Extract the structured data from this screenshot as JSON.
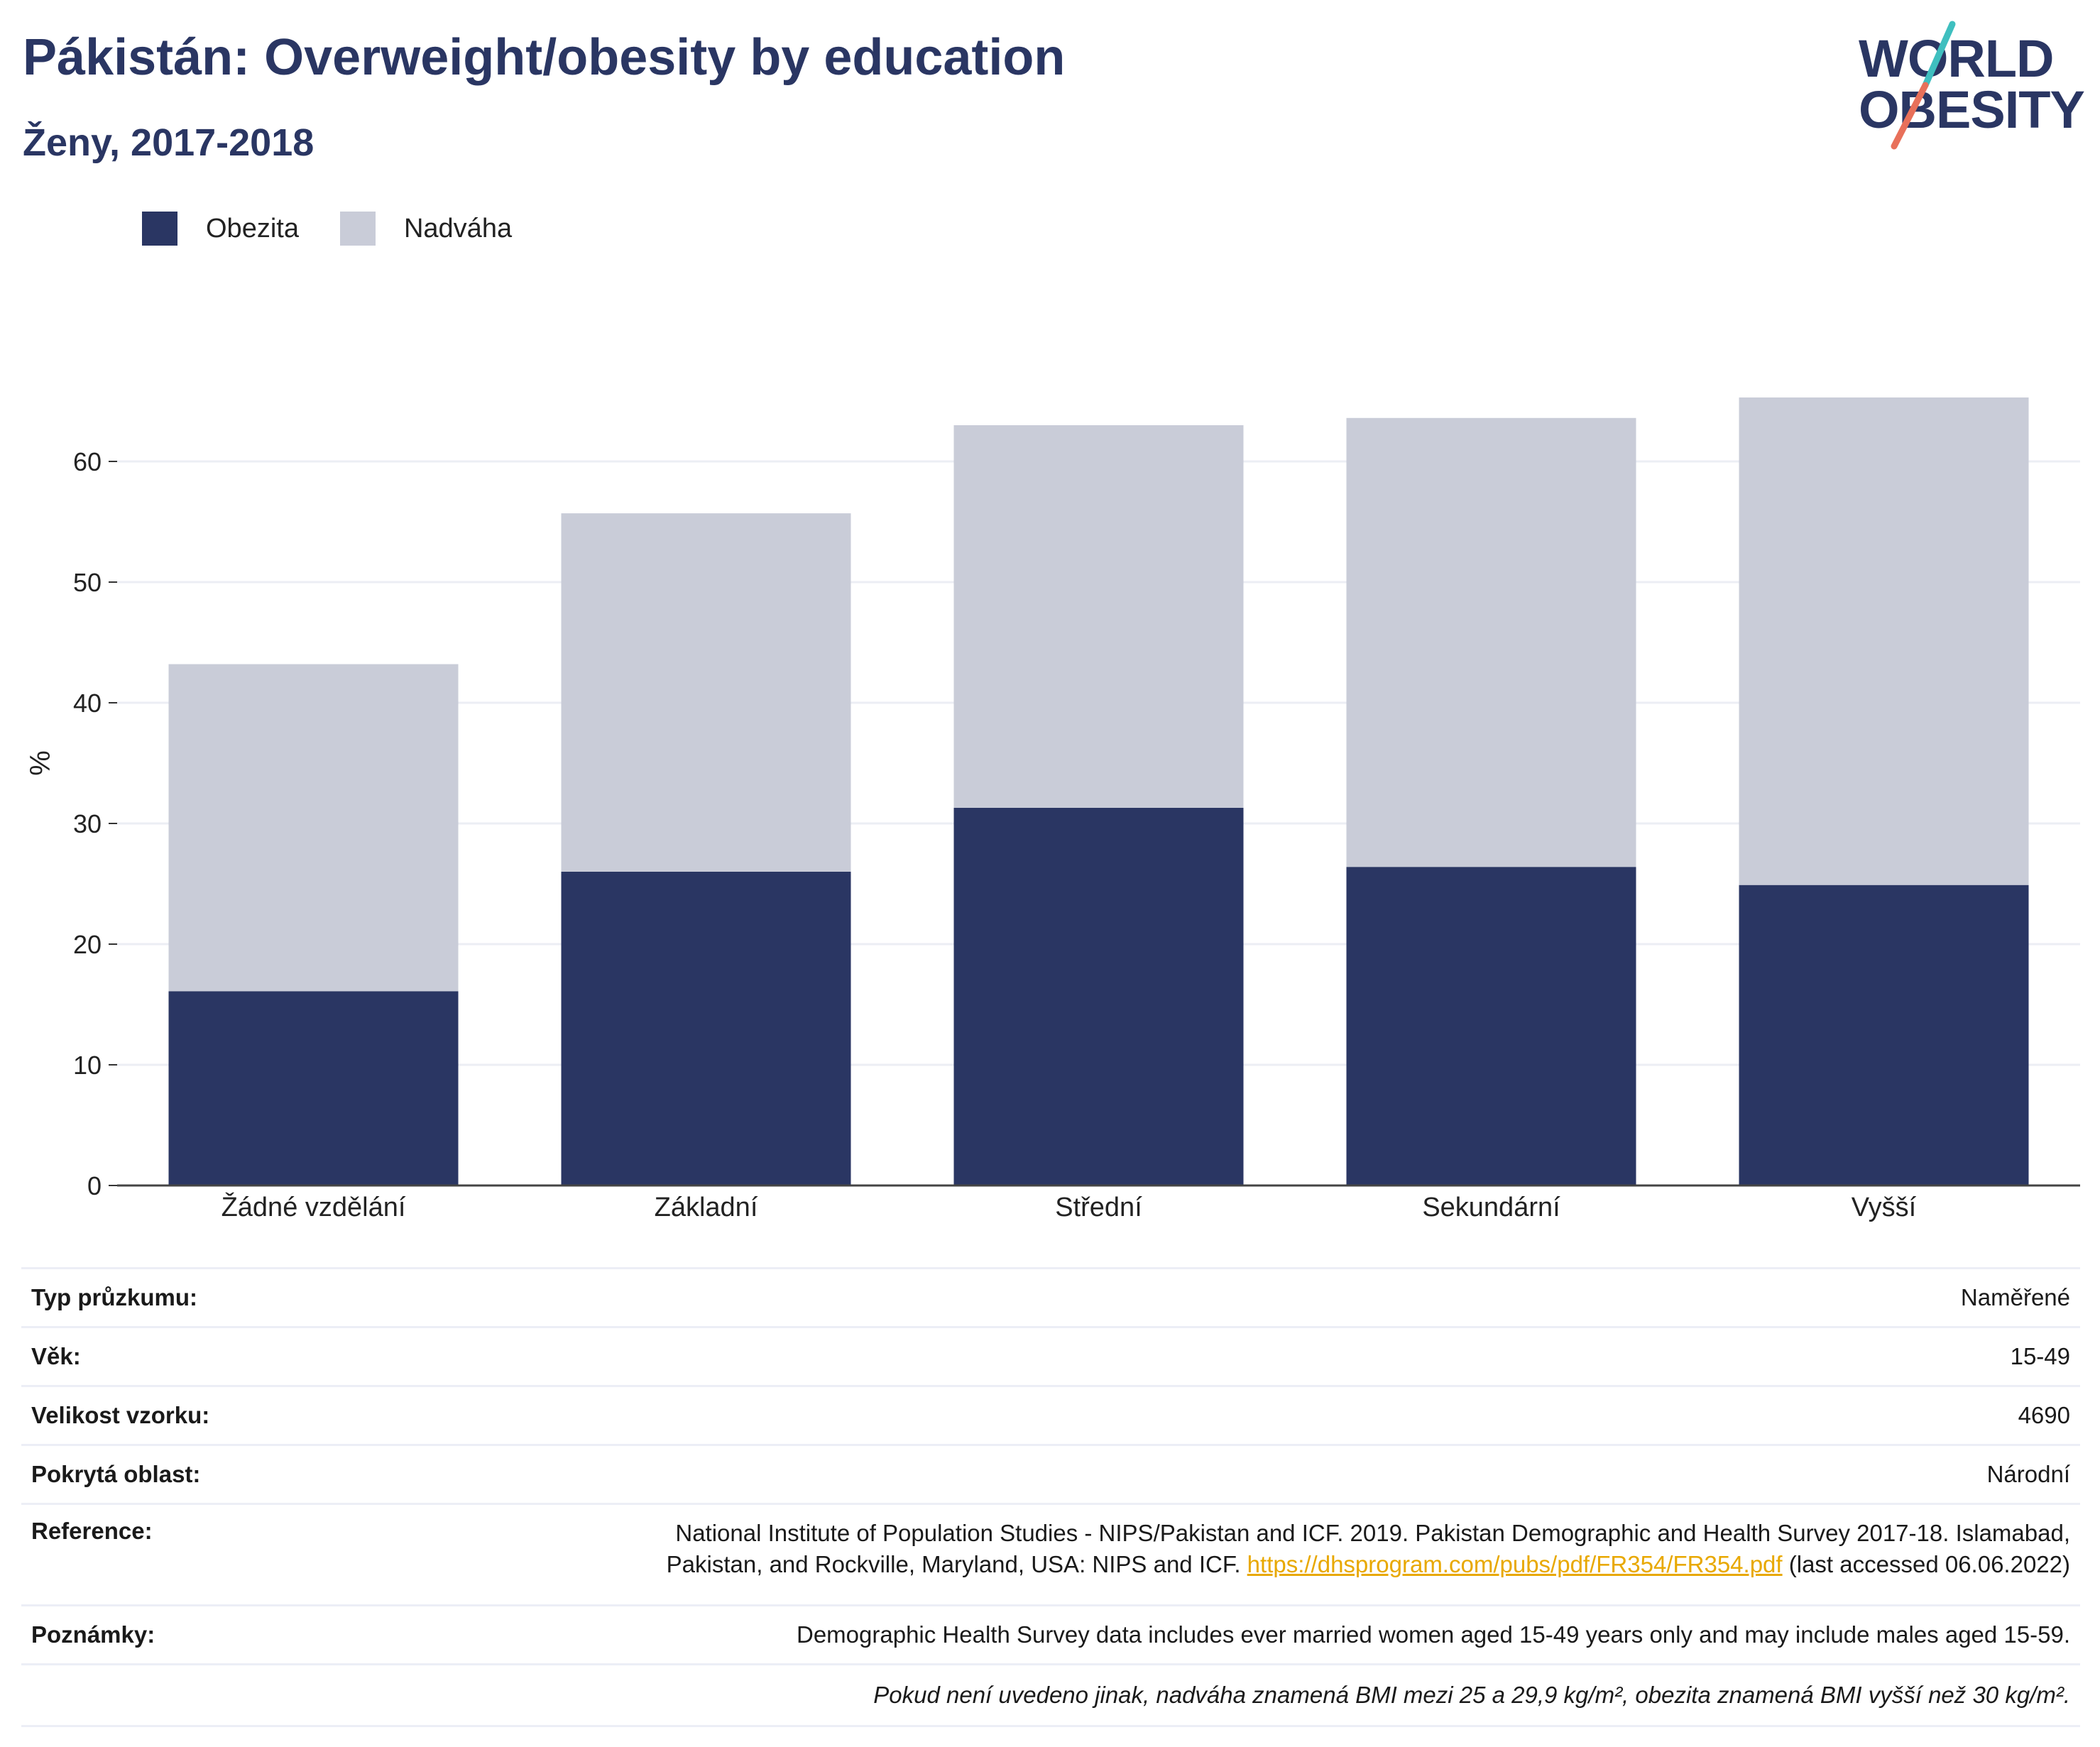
{
  "header": {
    "title": "Pákistán: Overweight/obesity by education",
    "subtitle": "Ženy, 2017-2018"
  },
  "logo": {
    "line1": "WORLD",
    "line2": "OBESITY",
    "colors": {
      "text": "#2a3663",
      "accent_teal": "#3fbfbf",
      "accent_coral": "#e8705a"
    }
  },
  "legend": [
    {
      "label": "Obezita",
      "color": "#2a3663"
    },
    {
      "label": "Nadváha",
      "color": "#c9ccd8"
    }
  ],
  "chart_data": {
    "type": "bar",
    "stacked": true,
    "categories": [
      "Žádné vzdělání",
      "Základní",
      "Střední",
      "Sekundární",
      "Vyšší"
    ],
    "series": [
      {
        "name": "Obezita",
        "color": "#2a3663",
        "values": [
          16.1,
          26.0,
          31.3,
          26.4,
          24.9
        ]
      },
      {
        "name": "Nadváha",
        "color": "#c9ccd8",
        "values": [
          27.1,
          29.7,
          31.7,
          37.2,
          40.4
        ]
      }
    ],
    "xlabel": "",
    "ylabel": "%",
    "ylim": [
      0,
      70
    ],
    "yticks": [
      0,
      10,
      20,
      30,
      40,
      50,
      60
    ],
    "grid": true,
    "legend_position": "top-left"
  },
  "info": {
    "rows": [
      {
        "label": "Typ průzkumu:",
        "value": "Naměřené"
      },
      {
        "label": "Věk:",
        "value": "15-49"
      },
      {
        "label": "Velikost vzorku:",
        "value": "4690"
      },
      {
        "label": "Pokrytá oblast:",
        "value": "Národní"
      }
    ],
    "reference": {
      "label": "Reference:",
      "text_line1": "National Institute of Population Studies - NIPS/Pakistan and ICF. 2019. Pakistan Demographic and Health Survey 2017-18. Islamabad,",
      "text_line2": "Pakistan, and Rockville, Maryland, USA: NIPS and ICF.",
      "link": "https://dhsprogram.com/pubs/pdf/FR354/FR354.pdf",
      "accessed": "(last accessed 06.06.2022)"
    },
    "notes": {
      "label": "Poznámky:",
      "value": "Demographic Health Survey data includes ever married women aged 15-49 years only and may include males aged 15-59."
    },
    "footnote": "Pokud není uvedeno jinak, nadváha znamená BMI mezi 25 a 29,9 kg/m², obezita znamená BMI vyšší než 30 kg/m²."
  }
}
